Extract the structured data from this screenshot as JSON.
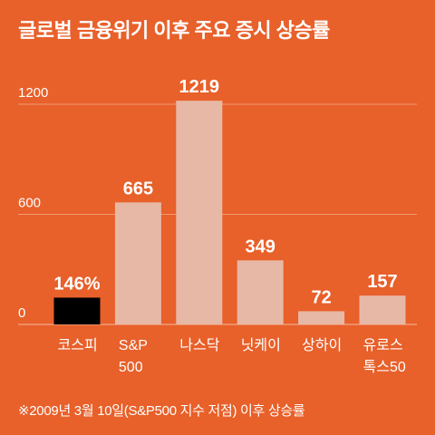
{
  "title": "글로벌 금융위기 이후 주요 증시 상승률",
  "footnote": "※2009년 3월 10일(S&P500 지수 저점) 이후 상승률",
  "colors": {
    "background": "#e8602a",
    "highlight_bar": "#000000",
    "bar": "#e7b8a6"
  },
  "chart_data": {
    "type": "bar",
    "title": "글로벌 금융위기 이후 주요 증시 상승률",
    "categories": [
      [
        "코스피"
      ],
      [
        "S&P",
        "500"
      ],
      [
        "나스닥"
      ],
      [
        "닛케이"
      ],
      [
        "상하이"
      ],
      [
        "유로스",
        "톡스50"
      ]
    ],
    "values": [
      146,
      665,
      1219,
      349,
      72,
      157
    ],
    "value_labels": [
      "146%",
      "665",
      "1219",
      "349",
      "72",
      "157"
    ],
    "highlight_index": 0,
    "ylim": [
      0,
      1300
    ],
    "yticks": [
      0,
      600,
      1200
    ],
    "ytick_labels": [
      "0",
      "600",
      "1200"
    ],
    "grid": true,
    "xlabel": "",
    "ylabel": ""
  }
}
